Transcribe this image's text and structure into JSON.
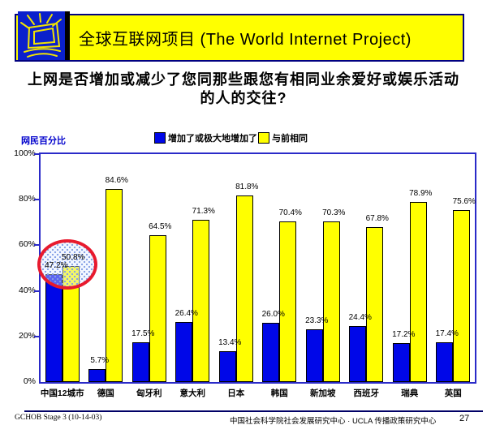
{
  "header": {
    "title": "全球互联网项目 (The World Internet Project)",
    "icon": "shining-monitor-icon"
  },
  "question": {
    "line1": "上网是否增加或减少了您同那些跟您有相同业余爱好或娱乐活动",
    "line2": "的人的交往?"
  },
  "chart_data": {
    "type": "bar",
    "title": "",
    "ylabel": "网民百分比",
    "xlabel": "",
    "ylim": [
      0,
      100
    ],
    "ytick_labels": [
      "100%",
      "80%",
      "60%",
      "40%",
      "20%",
      "0%"
    ],
    "grid": false,
    "legend_position": "top",
    "value_labels": true,
    "categories": [
      "中国12城市",
      "德国",
      "匈牙利",
      "意大利",
      "日本",
      "韩国",
      "新加坡",
      "西班牙",
      "瑞典",
      "英国"
    ],
    "series": [
      {
        "name": "增加了或极大地增加了",
        "color": "#0007e8",
        "values": [
          47.2,
          5.7,
          17.5,
          26.4,
          13.4,
          26.0,
          23.3,
          24.4,
          17.2,
          17.4
        ]
      },
      {
        "name": "与前相同",
        "color": "#ffff00",
        "values": [
          50.8,
          84.6,
          64.5,
          71.3,
          81.8,
          70.4,
          70.3,
          67.8,
          78.9,
          75.6
        ]
      }
    ],
    "annotation": {
      "type": "ellipse-highlight",
      "target_category": "中国12城市",
      "color": "#e81a2e",
      "fill": "blue-dot-pattern"
    }
  },
  "footer": {
    "left": "GCHOB Stage 3 (10-14-03)",
    "center": "中国社会科学院社会发展研究中心 · UCLA 传播政策研究中心",
    "page": "27"
  },
  "colors": {
    "banner_bg": "#ffff00",
    "banner_border": "#000080",
    "axis": "#2a2ac8",
    "series1": "#0007e8",
    "series2": "#ffff00",
    "highlight": "#e81a2e"
  }
}
